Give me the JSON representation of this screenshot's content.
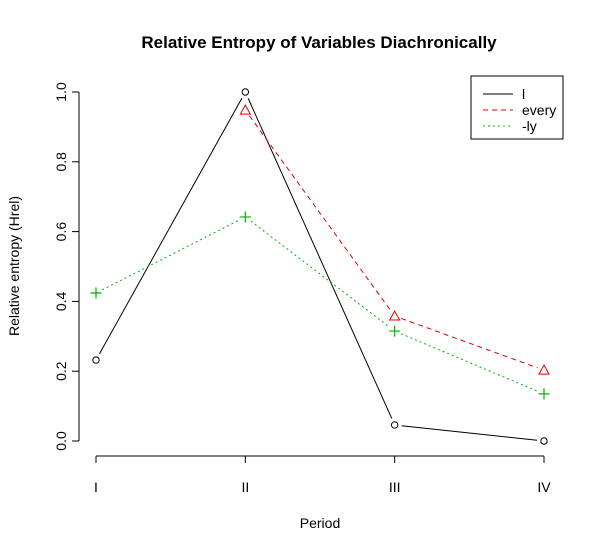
{
  "chart_data": {
    "type": "line",
    "title": "Relative Entropy of Variables Diachronically",
    "xlabel": "Period",
    "ylabel": "Relative entropy (Hrel)",
    "categories": [
      "I",
      "II",
      "III",
      "IV"
    ],
    "ylim": [
      0,
      1
    ],
    "yticks": [
      "0.0",
      "0.2",
      "0.4",
      "0.6",
      "0.8",
      "1.0"
    ],
    "ytick_values": [
      0,
      0.2,
      0.4,
      0.6,
      0.8,
      1.0
    ],
    "grid": false,
    "legend_position": "top-right",
    "series": [
      {
        "name": "l",
        "color": "#000000",
        "line": "solid",
        "marker": "circle",
        "values": [
          0.232,
          1.0,
          0.046,
          0.0
        ]
      },
      {
        "name": "every",
        "color": "#df0000",
        "line": "dashed",
        "marker": "triangle",
        "values": [
          null,
          0.948,
          0.358,
          0.203
        ]
      },
      {
        "name": "-ly",
        "color": "#00b000",
        "line": "dotted",
        "marker": "plus",
        "values": [
          0.424,
          0.642,
          0.315,
          0.135
        ]
      }
    ]
  }
}
